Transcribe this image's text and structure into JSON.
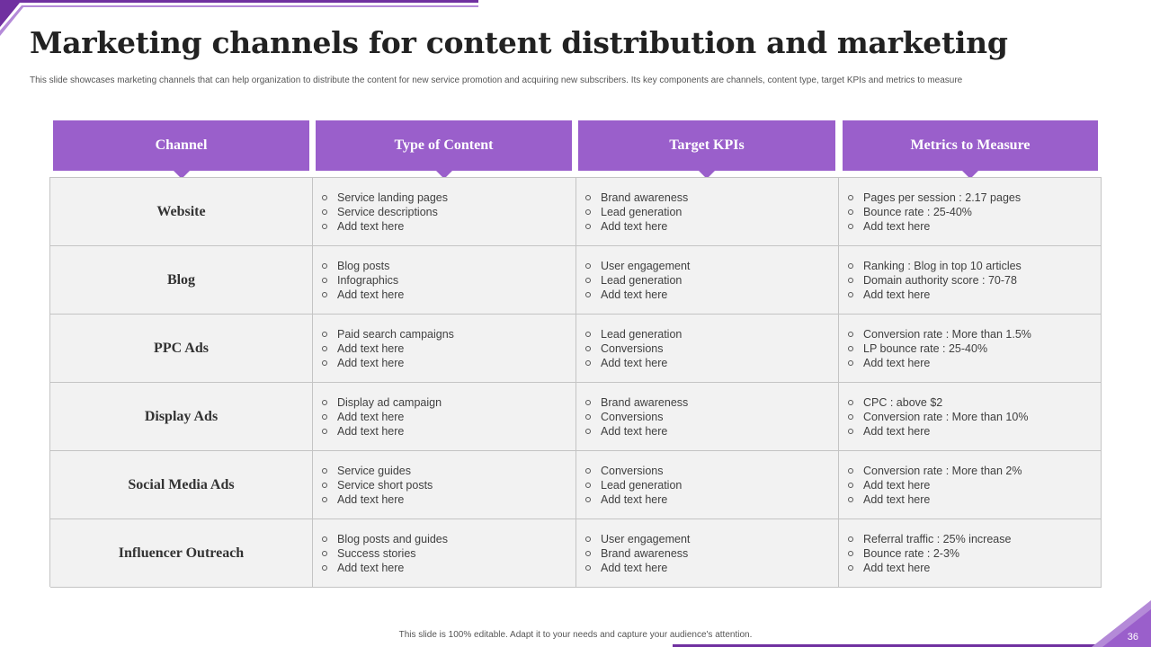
{
  "title": "Marketing channels for content distribution and marketing",
  "subtitle": "This slide showcases marketing  channels that can help organization to distribute the content for new service promotion and acquiring new subscribers. Its key components are channels, content type, target KPIs and metrics to measure",
  "table": {
    "headers": [
      "Channel",
      "Type of Content",
      "Target KPIs",
      "Metrics to Measure"
    ],
    "rows": [
      {
        "channel": "Website",
        "content": [
          "Service landing pages",
          "Service descriptions",
          "Add text here"
        ],
        "kpis": [
          "Brand awareness",
          "Lead generation",
          "Add text here"
        ],
        "metrics": [
          "Pages per session : 2.17 pages",
          "Bounce rate : 25-40%",
          "Add text here"
        ]
      },
      {
        "channel": "Blog",
        "content": [
          "Blog posts",
          "Infographics",
          "Add text here"
        ],
        "kpis": [
          "User engagement",
          "Lead generation",
          "Add text here"
        ],
        "metrics": [
          "Ranking : Blog in top 10 articles",
          "Domain authority score : 70-78",
          "Add text here"
        ]
      },
      {
        "channel": "PPC Ads",
        "content": [
          "Paid search campaigns",
          "Add text here",
          "Add text here"
        ],
        "kpis": [
          "Lead generation",
          "Conversions",
          "Add text here"
        ],
        "metrics": [
          "Conversion  rate : More than 1.5%",
          "LP bounce rate : 25-40%",
          "Add text here"
        ]
      },
      {
        "channel": "Display Ads",
        "content": [
          "Display ad campaign",
          "Add text here",
          "Add text here"
        ],
        "kpis": [
          "Brand awareness",
          "Conversions",
          "Add text here"
        ],
        "metrics": [
          "CPC : above  $2",
          "Conversion  rate : More than 10%",
          "Add text here"
        ]
      },
      {
        "channel": "Social Media Ads",
        "content": [
          "Service guides",
          "Service short posts",
          "Add text here"
        ],
        "kpis": [
          "Conversions",
          "Lead generation",
          "Add text here"
        ],
        "metrics": [
          "Conversion  rate : More than 2%",
          "Add text here",
          "Add text here"
        ]
      },
      {
        "channel": "Influencer Outreach",
        "content": [
          "Blog posts and guides",
          "Success stories",
          "Add text here"
        ],
        "kpis": [
          "User engagement",
          "Brand awareness",
          "Add text here"
        ],
        "metrics": [
          "Referral  traffic : 25% increase",
          "Bounce rate : 2-3%",
          "Add text here"
        ]
      }
    ]
  },
  "footer": "This slide is 100% editable.  Adapt it to your needs and capture your audience's attention.",
  "page_number": "36",
  "colors": {
    "accent": "#9a5fcb",
    "dark_accent": "#7030a0",
    "cell_bg": "#f2f2f2"
  }
}
